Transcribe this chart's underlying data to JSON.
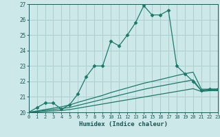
{
  "xlabel": "Humidex (Indice chaleur)",
  "ylabel": "",
  "background_color": "#cce8e8",
  "grid_color": "#aacfcf",
  "line_color": "#1a7a6a",
  "xlim": [
    0,
    23
  ],
  "ylim": [
    20,
    27
  ],
  "xticks": [
    0,
    1,
    2,
    3,
    4,
    5,
    6,
    7,
    8,
    9,
    10,
    11,
    12,
    13,
    14,
    15,
    16,
    17,
    18,
    19,
    20,
    21,
    22,
    23
  ],
  "yticks": [
    20,
    21,
    22,
    23,
    24,
    25,
    26,
    27
  ],
  "series": [
    {
      "x": [
        0,
        1,
        2,
        3,
        4,
        5,
        6,
        7,
        8,
        9,
        10,
        11,
        12,
        13,
        14,
        15,
        16,
        17,
        18,
        19,
        20,
        21,
        22,
        23
      ],
      "y": [
        20.0,
        20.3,
        20.6,
        20.6,
        20.2,
        20.5,
        21.2,
        22.3,
        23.0,
        23.0,
        24.6,
        24.3,
        25.0,
        25.8,
        26.9,
        26.3,
        26.3,
        26.6,
        23.0,
        22.5,
        22.0,
        21.4,
        21.5,
        21.5
      ],
      "marker": "D",
      "markersize": 2.5
    },
    {
      "x": [
        0,
        1,
        2,
        3,
        4,
        5,
        6,
        7,
        8,
        9,
        10,
        11,
        12,
        13,
        14,
        15,
        16,
        17,
        18,
        19,
        20,
        21,
        22,
        23
      ],
      "y": [
        20.0,
        20.09,
        20.18,
        20.27,
        20.36,
        20.48,
        20.65,
        20.8,
        20.95,
        21.1,
        21.28,
        21.43,
        21.58,
        21.73,
        21.88,
        22.0,
        22.12,
        22.25,
        22.38,
        22.5,
        22.6,
        21.5,
        21.5,
        21.5
      ],
      "marker": null,
      "markersize": 0
    },
    {
      "x": [
        0,
        1,
        2,
        3,
        4,
        5,
        6,
        7,
        8,
        9,
        10,
        11,
        12,
        13,
        14,
        15,
        16,
        17,
        18,
        19,
        20,
        21,
        22,
        23
      ],
      "y": [
        20.0,
        20.06,
        20.12,
        20.18,
        20.24,
        20.32,
        20.45,
        20.58,
        20.71,
        20.84,
        20.97,
        21.1,
        21.23,
        21.36,
        21.49,
        21.6,
        21.7,
        21.8,
        21.9,
        22.0,
        22.1,
        21.4,
        21.45,
        21.45
      ],
      "marker": null,
      "markersize": 0
    },
    {
      "x": [
        0,
        1,
        2,
        3,
        4,
        5,
        6,
        7,
        8,
        9,
        10,
        11,
        12,
        13,
        14,
        15,
        16,
        17,
        18,
        19,
        20,
        21,
        22,
        23
      ],
      "y": [
        20.0,
        20.03,
        20.06,
        20.09,
        20.12,
        20.18,
        20.27,
        20.36,
        20.45,
        20.54,
        20.63,
        20.72,
        20.81,
        20.9,
        20.99,
        21.08,
        21.17,
        21.26,
        21.35,
        21.44,
        21.53,
        21.35,
        21.4,
        21.4
      ],
      "marker": null,
      "markersize": 0
    }
  ]
}
